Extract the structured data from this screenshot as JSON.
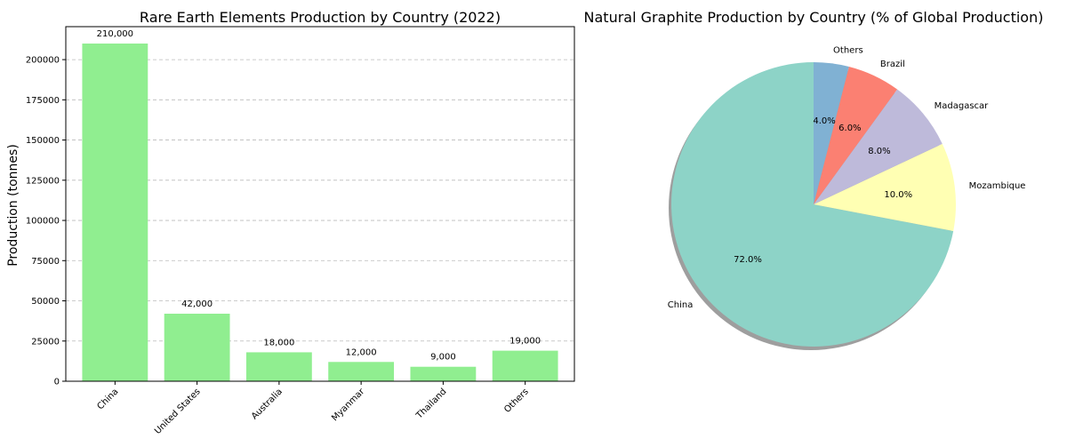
{
  "chart_data": [
    {
      "type": "bar",
      "title": "Rare Earth Elements Production by Country (2022)",
      "xlabel": "",
      "ylabel": "Production (tonnes)",
      "categories": [
        "China",
        "United States",
        "Australia",
        "Myanmar",
        "Thailand",
        "Others"
      ],
      "values": [
        210000,
        42000,
        18000,
        12000,
        9000,
        19000
      ],
      "value_labels": [
        "210,000",
        "42,000",
        "18,000",
        "12,000",
        "9,000",
        "19,000"
      ],
      "ylim": [
        0,
        220500
      ],
      "yticks": [
        0,
        25000,
        50000,
        75000,
        100000,
        125000,
        150000,
        175000,
        200000
      ],
      "ytick_labels": [
        "0",
        "25000",
        "50000",
        "75000",
        "100000",
        "125000",
        "150000",
        "175000",
        "200000"
      ],
      "grid": "y-dashed",
      "bar_color": "#90ee90",
      "xtick_rotation": 45
    },
    {
      "type": "pie",
      "title": "Natural Graphite Production by Country (% of Global Production)",
      "labels": [
        "China",
        "Mozambique",
        "Madagascar",
        "Brazil",
        "Others"
      ],
      "values": [
        72,
        10,
        8,
        6,
        4
      ],
      "pct_labels": [
        "72.0%",
        "10.0%",
        "8.0%",
        "6.0%",
        "4.0%"
      ],
      "colors": [
        "#8dd3c7",
        "#ffffb3",
        "#bebada",
        "#fb8072",
        "#80b1d3"
      ],
      "start_angle": 90,
      "direction": "counterclockwise",
      "shadow": true
    }
  ]
}
